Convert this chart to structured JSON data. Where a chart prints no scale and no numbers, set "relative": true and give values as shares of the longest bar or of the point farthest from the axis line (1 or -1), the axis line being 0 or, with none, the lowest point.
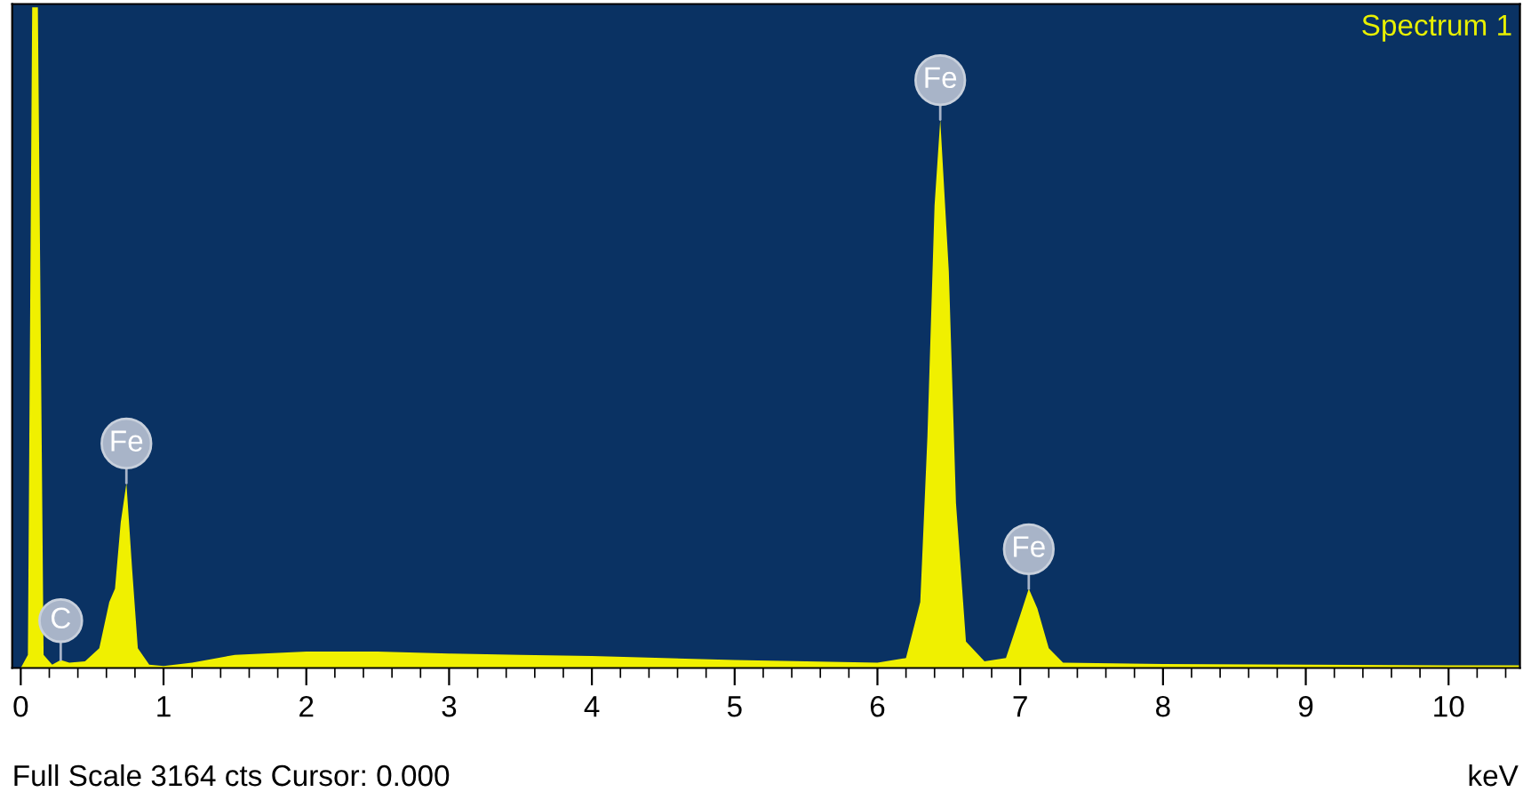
{
  "chart_data": {
    "type": "area",
    "title": "Spectrum 1",
    "xlabel": "keV",
    "relative": true,
    "xlim": [
      -0.06,
      10.5
    ],
    "xticks": [
      0,
      1,
      2,
      3,
      4,
      5,
      6,
      7,
      8,
      9,
      10
    ],
    "tick_labels": "x",
    "grid": false,
    "legend": false,
    "x": [
      0,
      0.05,
      0.08,
      0.12,
      0.16,
      0.22,
      0.28,
      0.34,
      0.45,
      0.55,
      0.62,
      0.66,
      0.7,
      0.74,
      0.78,
      0.82,
      0.9,
      1.0,
      1.2,
      1.5,
      2.0,
      2.5,
      3.0,
      3.5,
      4.0,
      4.5,
      5.0,
      5.5,
      6.0,
      6.2,
      6.3,
      6.35,
      6.4,
      6.44,
      6.5,
      6.55,
      6.62,
      6.75,
      6.9,
      7.0,
      7.06,
      7.12,
      7.2,
      7.3,
      8,
      9,
      10,
      10.5
    ],
    "series": [
      {
        "color": "#f0f000",
        "values": [
          0,
          0.02,
          1,
          1,
          0.02,
          0.005,
          0.012,
          0.008,
          0.01,
          0.03,
          0.1,
          0.12,
          0.22,
          0.28,
          0.15,
          0.03,
          0.005,
          0.003,
          0.008,
          0.02,
          0.025,
          0.025,
          0.022,
          0.02,
          0.018,
          0.015,
          0.012,
          0.01,
          0.008,
          0.015,
          0.1,
          0.35,
          0.7,
          0.83,
          0.6,
          0.25,
          0.04,
          0.01,
          0.015,
          0.08,
          0.12,
          0.09,
          0.03,
          0.008,
          0.006,
          0.005,
          0.004,
          0.004
        ]
      }
    ],
    "annotations": [
      {
        "text": "C",
        "x": 0.28,
        "y": 0.012
      },
      {
        "text": "Fe",
        "x": 0.74,
        "y": 0.28
      },
      {
        "text": "Fe",
        "x": 6.44,
        "y": 0.83
      },
      {
        "text": "Fe",
        "x": 7.06,
        "y": 0.12
      },
      "Full Scale 3164 cts Cursor: 0.000"
    ]
  }
}
